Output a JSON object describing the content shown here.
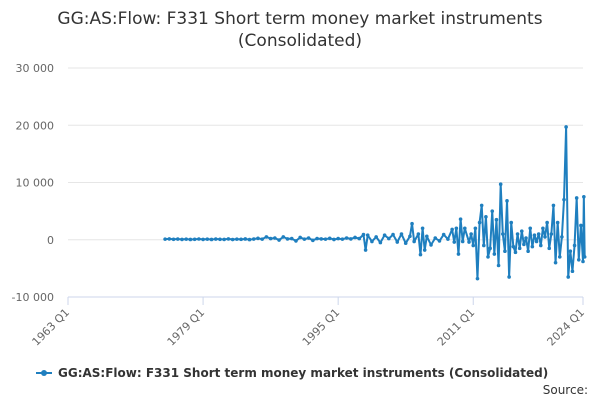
{
  "chart_data": {
    "type": "line",
    "title_line1": "GG:AS:Flow: F331 Short term money market instruments",
    "title_line2": "(Consolidated)",
    "xlabel": "",
    "ylabel": "",
    "xlim": [
      1963.0,
      2024.0
    ],
    "ylim": [
      -10000,
      30000
    ],
    "x_ticks": [
      {
        "label": "1963 Q1",
        "value": 1963.0
      },
      {
        "label": "1979 Q1",
        "value": 1979.0
      },
      {
        "label": "1995 Q1",
        "value": 1995.0
      },
      {
        "label": "2011 Q1",
        "value": 2011.0
      },
      {
        "label": "2024 Q1",
        "value": 2024.0
      }
    ],
    "y_ticks": [
      {
        "label": "30 000",
        "value": 30000
      },
      {
        "label": "20 000",
        "value": 20000
      },
      {
        "label": "10 000",
        "value": 10000
      },
      {
        "label": "0",
        "value": 0
      },
      {
        "label": "-10 000",
        "value": -10000
      }
    ],
    "grid": true,
    "legend_position": "bottom",
    "series": [
      {
        "name": "GG:AS:Flow: F331 Short term money market instruments (Consolidated)",
        "color": "#1f7fbf",
        "points": [
          [
            1974.5,
            100
          ],
          [
            1975.0,
            150
          ],
          [
            1975.5,
            80
          ],
          [
            1976.0,
            120
          ],
          [
            1976.5,
            60
          ],
          [
            1977.0,
            100
          ],
          [
            1977.5,
            50
          ],
          [
            1978.0,
            80
          ],
          [
            1978.5,
            130
          ],
          [
            1979.0,
            60
          ],
          [
            1979.5,
            100
          ],
          [
            1980.0,
            50
          ],
          [
            1980.5,
            120
          ],
          [
            1981.0,
            80
          ],
          [
            1981.5,
            60
          ],
          [
            1982.0,
            150
          ],
          [
            1982.5,
            40
          ],
          [
            1983.0,
            100
          ],
          [
            1983.5,
            70
          ],
          [
            1984.0,
            140
          ],
          [
            1984.5,
            30
          ],
          [
            1985.0,
            120
          ],
          [
            1985.5,
            250
          ],
          [
            1986.0,
            100
          ],
          [
            1986.5,
            500
          ],
          [
            1987.0,
            200
          ],
          [
            1987.5,
            300
          ],
          [
            1988.0,
            -50
          ],
          [
            1988.5,
            500
          ],
          [
            1989.0,
            150
          ],
          [
            1989.5,
            200
          ],
          [
            1990.0,
            -200
          ],
          [
            1990.5,
            400
          ],
          [
            1991.0,
            100
          ],
          [
            1991.5,
            300
          ],
          [
            1992.0,
            -100
          ],
          [
            1992.5,
            200
          ],
          [
            1993.0,
            150
          ],
          [
            1993.5,
            100
          ],
          [
            1994.0,
            250
          ],
          [
            1994.5,
            50
          ],
          [
            1995.0,
            200
          ],
          [
            1995.5,
            100
          ],
          [
            1996.0,
            300
          ],
          [
            1996.5,
            150
          ],
          [
            1997.0,
            400
          ],
          [
            1997.5,
            200
          ],
          [
            1998.0,
            900
          ],
          [
            1998.25,
            -1800
          ],
          [
            1998.5,
            800
          ],
          [
            1999.0,
            -300
          ],
          [
            1999.5,
            500
          ],
          [
            2000.0,
            -500
          ],
          [
            2000.5,
            800
          ],
          [
            2001.0,
            200
          ],
          [
            2001.5,
            900
          ],
          [
            2002.0,
            -400
          ],
          [
            2002.5,
            1000
          ],
          [
            2003.0,
            -600
          ],
          [
            2003.5,
            600
          ],
          [
            2003.75,
            2800
          ],
          [
            2004.0,
            -300
          ],
          [
            2004.5,
            1000
          ],
          [
            2004.75,
            -2600
          ],
          [
            2005.0,
            2000
          ],
          [
            2005.25,
            -1800
          ],
          [
            2005.5,
            600
          ],
          [
            2006.0,
            -900
          ],
          [
            2006.5,
            300
          ],
          [
            2007.0,
            -200
          ],
          [
            2007.5,
            900
          ],
          [
            2008.0,
            100
          ],
          [
            2008.5,
            1800
          ],
          [
            2008.75,
            -400
          ],
          [
            2009.0,
            2000
          ],
          [
            2009.25,
            -2500
          ],
          [
            2009.5,
            3600
          ],
          [
            2009.75,
            -300
          ],
          [
            2010.0,
            2000
          ],
          [
            2010.5,
            -400
          ],
          [
            2010.75,
            1000
          ],
          [
            2011.0,
            -1000
          ],
          [
            2011.25,
            2000
          ],
          [
            2011.5,
            -6800
          ],
          [
            2011.75,
            3000
          ],
          [
            2012.0,
            6000
          ],
          [
            2012.25,
            -1000
          ],
          [
            2012.5,
            4000
          ],
          [
            2012.75,
            -3000
          ],
          [
            2013.0,
            -1500
          ],
          [
            2013.25,
            5000
          ],
          [
            2013.5,
            -2500
          ],
          [
            2013.75,
            3500
          ],
          [
            2014.0,
            -4500
          ],
          [
            2014.25,
            9700
          ],
          [
            2014.5,
            1000
          ],
          [
            2014.75,
            -2000
          ],
          [
            2015.0,
            6800
          ],
          [
            2015.25,
            -6500
          ],
          [
            2015.5,
            3000
          ],
          [
            2015.75,
            -1200
          ],
          [
            2016.0,
            -2200
          ],
          [
            2016.25,
            1000
          ],
          [
            2016.5,
            -1500
          ],
          [
            2016.75,
            1500
          ],
          [
            2017.0,
            -800
          ],
          [
            2017.25,
            300
          ],
          [
            2017.5,
            -2000
          ],
          [
            2017.75,
            2000
          ],
          [
            2018.0,
            -1200
          ],
          [
            2018.25,
            800
          ],
          [
            2018.5,
            -300
          ],
          [
            2018.75,
            1000
          ],
          [
            2019.0,
            -1000
          ],
          [
            2019.25,
            2000
          ],
          [
            2019.5,
            500
          ],
          [
            2019.75,
            3000
          ],
          [
            2020.0,
            -1500
          ],
          [
            2020.25,
            1000
          ],
          [
            2020.5,
            6000
          ],
          [
            2020.75,
            -4000
          ],
          [
            2021.0,
            3000
          ],
          [
            2021.25,
            -3000
          ],
          [
            2021.5,
            500
          ],
          [
            2021.75,
            7000
          ],
          [
            2022.0,
            19700
          ],
          [
            2022.25,
            -6500
          ],
          [
            2022.5,
            -2000
          ],
          [
            2022.75,
            -5500
          ],
          [
            2023.0,
            -1000
          ],
          [
            2023.25,
            7300
          ],
          [
            2023.5,
            -3500
          ],
          [
            2023.75,
            2500
          ],
          [
            2024.0,
            -3800
          ],
          [
            2024.1,
            7500
          ],
          [
            2024.2,
            -3000
          ]
        ]
      }
    ],
    "source_label": "Source:"
  }
}
